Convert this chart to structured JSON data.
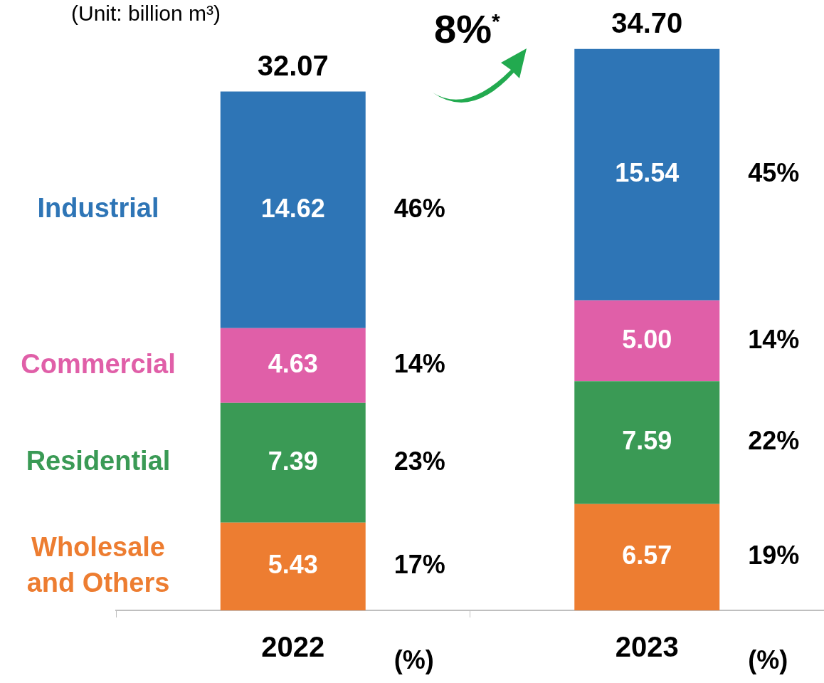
{
  "chart_data": {
    "type": "bar",
    "subtitle": "(Unit: billion m³)",
    "stacked": true,
    "relative": false,
    "legend": "left",
    "categories": [
      "2022",
      "2023"
    ],
    "series": [
      {
        "name": "Wholesale and Others",
        "color": "#ed7d31",
        "values": [
          5.43,
          6.57
        ],
        "value_labels": [
          "5.43",
          "6.57"
        ]
      },
      {
        "name": "Residential",
        "color": "#3a9a55",
        "values": [
          7.39,
          7.59
        ],
        "value_labels": [
          "7.39",
          "7.59"
        ]
      },
      {
        "name": "Commercial",
        "color": "#e05fa8",
        "values": [
          4.63,
          5.0
        ],
        "value_labels": [
          "4.63",
          "5.00"
        ]
      },
      {
        "name": "Industrial",
        "color": "#2e75b6",
        "values": [
          14.62,
          15.54
        ],
        "value_labels": [
          "14.62",
          "15.54"
        ]
      }
    ],
    "totals": [
      "32.07",
      "34.70"
    ],
    "annotations": [
      "8%$^{*}$",
      "17%",
      "23%",
      "14%",
      "46%",
      "19%",
      "22%",
      "14%",
      "45%",
      "(%)",
      "(%)"
    ]
  }
}
